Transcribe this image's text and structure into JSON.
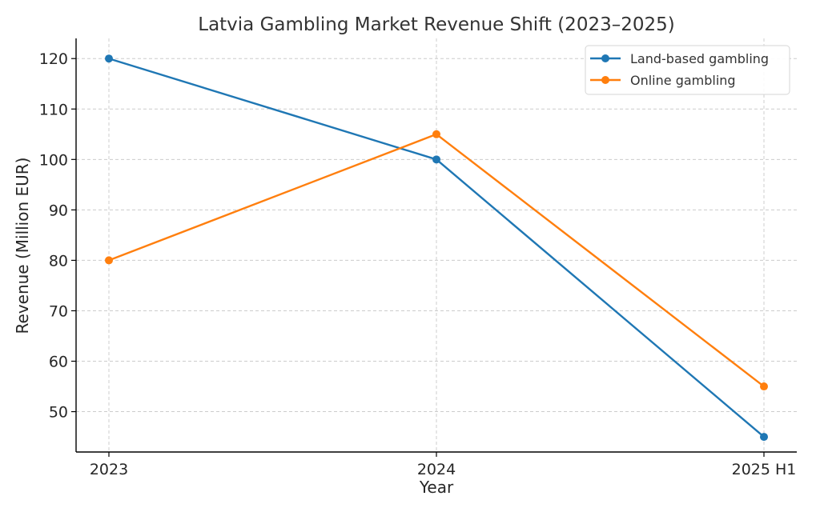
{
  "chart_data": {
    "type": "line",
    "title": "Latvia Gambling Market Revenue Shift (2023–2025)",
    "xlabel": "Year",
    "ylabel": "Revenue (Million EUR)",
    "categories": [
      "2023",
      "2024",
      "2025 H1"
    ],
    "yticks": [
      50,
      60,
      70,
      80,
      90,
      100,
      110,
      120
    ],
    "ylim": [
      42,
      124
    ],
    "grid": true,
    "legend_position": "top-right",
    "series": [
      {
        "name": "Land-based gambling",
        "color": "#1f77b4",
        "marker": "circle",
        "values": [
          120,
          100,
          45
        ]
      },
      {
        "name": "Online gambling",
        "color": "#ff7f0e",
        "marker": "circle",
        "values": [
          80,
          105,
          55
        ]
      }
    ]
  }
}
